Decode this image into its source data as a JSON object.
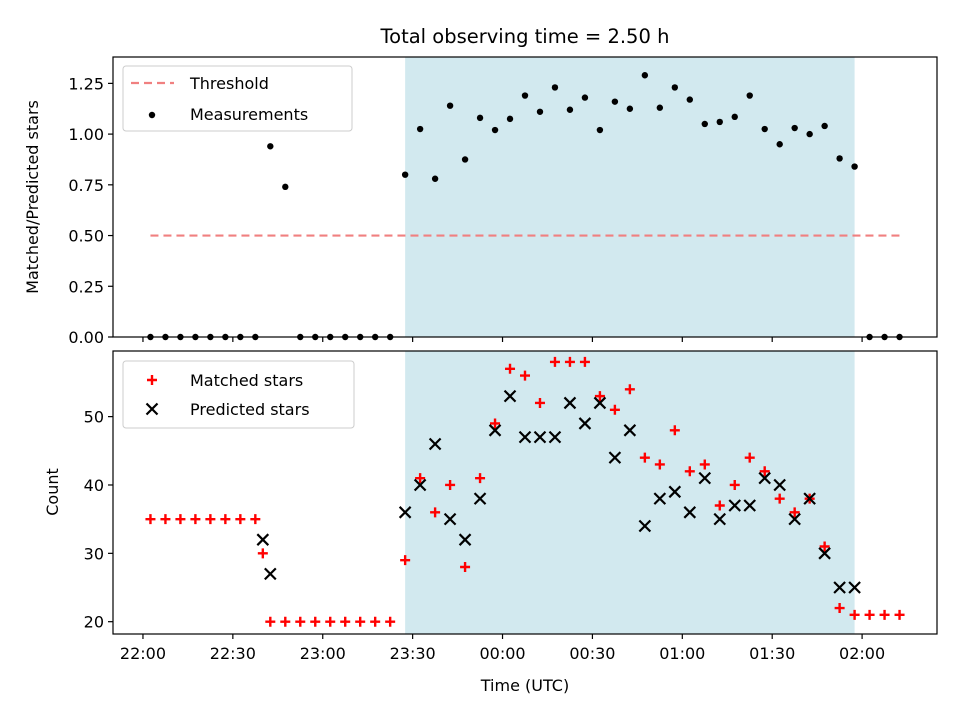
{
  "chart_data": {
    "type": "scatter",
    "title": "Total observing time = 2.50 h",
    "xlabel": "Time (UTC)",
    "x_tick_labels": [
      "22:00",
      "22:30",
      "23:00",
      "23:30",
      "00:00",
      "00:30",
      "01:00",
      "01:30",
      "02:00"
    ],
    "x_tick_minutes": [
      0,
      30,
      60,
      90,
      120,
      150,
      180,
      210,
      240
    ],
    "xlim_minutes": [
      -10,
      265
    ],
    "shaded_span_minutes": [
      87.5,
      237.5
    ],
    "shaded_color": "#d2e9ef",
    "top": {
      "ylabel": "Matched/Predicted stars",
      "ylim": [
        0,
        1.38
      ],
      "yticks": [
        "0.00",
        "0.25",
        "0.50",
        "0.75",
        "1.00",
        "1.25"
      ],
      "ytick_values": [
        0,
        0.25,
        0.5,
        0.75,
        1.0,
        1.25
      ],
      "threshold": {
        "name": "Threshold",
        "value": 0.5,
        "x_range_minutes": [
          2.5,
          252.5
        ],
        "color": "#f08080"
      },
      "measurements": {
        "name": "Measurements",
        "color": "#000000",
        "x_minutes": [
          2.5,
          7.5,
          12.5,
          17.5,
          22.5,
          27.5,
          32.5,
          37.5,
          42.5,
          47.5,
          52.5,
          57.5,
          62.5,
          67.5,
          72.5,
          77.5,
          82.5,
          87.5,
          92.5,
          97.5,
          102.5,
          107.5,
          112.5,
          117.5,
          122.5,
          127.5,
          132.5,
          137.5,
          142.5,
          147.5,
          152.5,
          157.5,
          162.5,
          167.5,
          172.5,
          177.5,
          182.5,
          187.5,
          192.5,
          197.5,
          202.5,
          207.5,
          212.5,
          217.5,
          222.5,
          227.5,
          232.5,
          237.5,
          242.5,
          247.5,
          252.5
        ],
        "y": [
          0,
          0,
          0,
          0,
          0,
          0,
          0,
          0,
          0.94,
          0.74,
          0,
          0,
          0,
          0,
          0,
          0,
          0,
          0.8,
          1.025,
          0.78,
          1.14,
          0.875,
          1.08,
          1.02,
          1.075,
          1.19,
          1.11,
          1.23,
          1.12,
          1.18,
          1.02,
          1.16,
          1.125,
          1.29,
          1.13,
          1.23,
          1.17,
          1.05,
          1.06,
          1.085,
          1.19,
          1.025,
          0.95,
          1.03,
          1.0,
          1.04,
          0.88,
          0.84,
          0,
          0,
          0
        ]
      }
    },
    "bottom": {
      "ylabel": "Count",
      "ylim": [
        18.2,
        59.6
      ],
      "yticks": [
        "20",
        "30",
        "40",
        "50"
      ],
      "ytick_values": [
        20,
        30,
        40,
        50
      ],
      "series": [
        {
          "name": "Matched stars",
          "marker": "plus",
          "color": "#ff0000",
          "x_minutes": [
            2.5,
            7.5,
            12.5,
            17.5,
            22.5,
            27.5,
            32.5,
            37.5,
            40,
            42.5,
            47.5,
            52.5,
            57.5,
            62.5,
            67.5,
            72.5,
            77.5,
            82.5,
            87.5,
            92.5,
            97.5,
            102.5,
            107.5,
            112.5,
            117.5,
            122.5,
            127.5,
            132.5,
            137.5,
            142.5,
            147.5,
            152.5,
            157.5,
            162.5,
            167.5,
            172.5,
            177.5,
            182.5,
            187.5,
            192.5,
            197.5,
            202.5,
            207.5,
            212.5,
            217.5,
            222.5,
            227.5,
            232.5,
            237.5,
            242.5,
            247.5,
            252.5
          ],
          "y": [
            35,
            35,
            35,
            35,
            35,
            35,
            35,
            35,
            30,
            20,
            20,
            20,
            20,
            20,
            20,
            20,
            20,
            20,
            29,
            41,
            36,
            40,
            28,
            41,
            49,
            57,
            56,
            52,
            58,
            58,
            58,
            53,
            51,
            54,
            44,
            43,
            48,
            42,
            43,
            37,
            40,
            44,
            42,
            38,
            36,
            38,
            31,
            22,
            21,
            21,
            21,
            21
          ]
        },
        {
          "name": "Predicted stars",
          "marker": "x",
          "color": "#000000",
          "x_minutes": [
            40,
            42.5,
            87.5,
            92.5,
            97.5,
            102.5,
            107.5,
            112.5,
            117.5,
            122.5,
            127.5,
            132.5,
            137.5,
            142.5,
            147.5,
            152.5,
            157.5,
            162.5,
            167.5,
            172.5,
            177.5,
            182.5,
            187.5,
            192.5,
            197.5,
            202.5,
            207.5,
            212.5,
            217.5,
            222.5,
            227.5,
            232.5,
            237.5
          ],
          "y": [
            32,
            27,
            36,
            40,
            46,
            35,
            32,
            38,
            48,
            53,
            47,
            47,
            47,
            52,
            49,
            52,
            44,
            48,
            34,
            38,
            39,
            36,
            41,
            35,
            37,
            37,
            41,
            40,
            35,
            38,
            30,
            25,
            25
          ]
        }
      ]
    },
    "legend_top_position": "upper-left",
    "legend_bottom_position": "upper-left"
  }
}
